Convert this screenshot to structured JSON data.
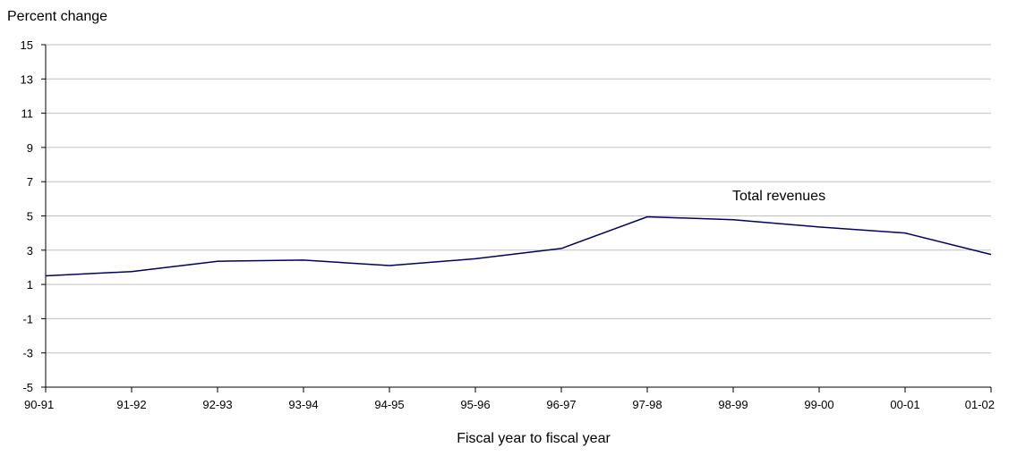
{
  "chart_data": {
    "type": "line",
    "title": "",
    "ylabel": "Percent change",
    "xlabel": "Fiscal year to fiscal year",
    "categories": [
      "90-91",
      "91-92",
      "92-93",
      "93-94",
      "94-95",
      "95-96",
      "96-97",
      "97-98",
      "98-99",
      "99-00",
      "00-01",
      "01-02"
    ],
    "ylim": [
      -5,
      15
    ],
    "yticks": [
      "15",
      "13",
      "11",
      "9",
      "7",
      "5",
      "3",
      "1",
      "-1",
      "-3",
      "-5"
    ],
    "grid": true,
    "annotation": "Total revenues",
    "series": [
      {
        "name": "Total revenues",
        "values": [
          1.5,
          1.75,
          2.35,
          2.42,
          2.1,
          2.5,
          3.1,
          4.95,
          4.78,
          4.35,
          4.0,
          2.75
        ],
        "color": "#000066"
      }
    ]
  }
}
